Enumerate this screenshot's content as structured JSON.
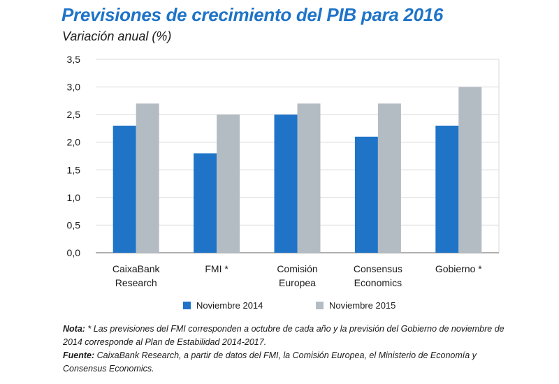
{
  "title": "Previsiones de crecimiento del PIB para 2016",
  "subtitle": "Variación anual (%)",
  "colors": {
    "title": "#1f74c8",
    "series1": "#1f74c8",
    "series2": "#b4bcc3",
    "grid": "#d9d9d9",
    "axis": "#7f7f7f"
  },
  "chart_data": {
    "type": "bar",
    "title": "Previsiones de crecimiento del PIB para 2016",
    "subtitle": "Variación anual (%)",
    "categories": [
      [
        "CaixaBank",
        "Research"
      ],
      [
        "FMI *"
      ],
      [
        "Comisión",
        "Europea"
      ],
      [
        "Consensus",
        "Economics"
      ],
      [
        "Gobierno *"
      ]
    ],
    "series": [
      {
        "name": "Noviembre 2014",
        "values": [
          2.3,
          1.8,
          2.5,
          2.1,
          2.3
        ]
      },
      {
        "name": "Noviembre 2015",
        "values": [
          2.7,
          2.5,
          2.7,
          2.7,
          3.0
        ]
      }
    ],
    "ylim": [
      0,
      3.5
    ],
    "yticks": [
      "0,0",
      "0,5",
      "1,0",
      "1,5",
      "2,0",
      "2,5",
      "3,0",
      "3,5"
    ],
    "grid": true,
    "legend": "bottom"
  },
  "notes": {
    "nota_label": "Nota:",
    "nota_text": " * Las previsiones del FMI corresponden a octubre de cada año y la previsión del Gobierno de noviembre de 2014 corresponde al Plan de Estabilidad 2014-2017.",
    "fuente_label": "Fuente:",
    "fuente_text": " CaixaBank Research, a partir de datos del FMI, la Comisión Europea, el Ministerio de Economía y Consensus Economics."
  }
}
